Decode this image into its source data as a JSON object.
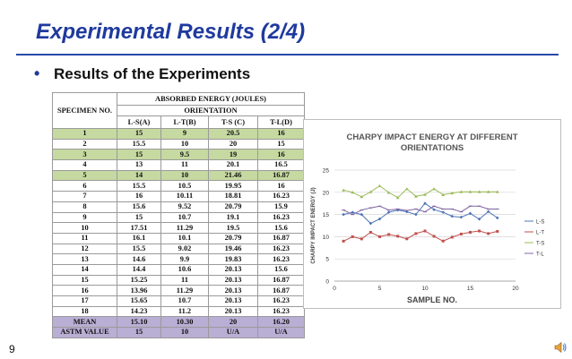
{
  "slide": {
    "title": "Experimental Results (2/4)",
    "bullet": "Results of the Experiments",
    "page_number": "9",
    "speaker_icon": "speaker-icon"
  },
  "table": {
    "specimen_header": "SPECIMEN NO.",
    "absorbed_header": "ABSORBED ENERGY (JOULES)",
    "orientation_header": "ORIENTATION",
    "columns": [
      "L-S(A)",
      "L-T(B)",
      "T-S (C)",
      "T-L(D)"
    ],
    "rows": [
      [
        "1",
        "15",
        "9",
        "20.5",
        "16"
      ],
      [
        "2",
        "15.5",
        "10",
        "20",
        "15"
      ],
      [
        "3",
        "15",
        "9.5",
        "19",
        "16"
      ],
      [
        "4",
        "13",
        "11",
        "20.1",
        "16.5"
      ],
      [
        "5",
        "14",
        "10",
        "21.46",
        "16.87"
      ],
      [
        "6",
        "15.5",
        "10.5",
        "19.95",
        "16"
      ],
      [
        "7",
        "16",
        "10.11",
        "18.81",
        "16.23"
      ],
      [
        "8",
        "15.6",
        "9.52",
        "20.79",
        "15.9"
      ],
      [
        "9",
        "15",
        "10.7",
        "19.1",
        "16.23"
      ],
      [
        "10",
        "17.51",
        "11.29",
        "19.5",
        "15.6"
      ],
      [
        "11",
        "16.1",
        "10.1",
        "20.79",
        "16.87"
      ],
      [
        "12",
        "15.5",
        "9.02",
        "19.46",
        "16.23"
      ],
      [
        "13",
        "14.6",
        "9.9",
        "19.83",
        "16.23"
      ],
      [
        "14",
        "14.4",
        "10.6",
        "20.13",
        "15.6"
      ],
      [
        "15",
        "15.25",
        "11",
        "20.13",
        "16.87"
      ],
      [
        "16",
        "13.96",
        "11.29",
        "20.13",
        "16.87"
      ],
      [
        "17",
        "15.65",
        "10.7",
        "20.13",
        "16.23"
      ],
      [
        "18",
        "14.23",
        "11.2",
        "20.13",
        "16.23"
      ]
    ],
    "mean_row": [
      "MEAN",
      "15.10",
      "10.30",
      "20",
      "16.20"
    ],
    "astm_row": [
      "ASTM VALUE",
      "15",
      "10",
      "U/A",
      "U/A"
    ],
    "colors": {
      "green_row": "#c6d9a1",
      "purple_row": "#b9aed4"
    }
  },
  "chart_data": {
    "type": "line",
    "title": "CHARPY IMPACT ENERGY AT DIFFERENT ORIENTATIONS",
    "xlabel": "SAMPLE NO.",
    "ylabel": "CHARPY IMPACT ENERGY (J)",
    "xlim": [
      0,
      20
    ],
    "ylim": [
      0,
      25
    ],
    "xticks": [
      0,
      5,
      10,
      15,
      20
    ],
    "yticks": [
      0,
      5,
      10,
      15,
      20,
      25
    ],
    "grid": true,
    "legend": "right",
    "x": [
      1,
      2,
      3,
      4,
      5,
      6,
      7,
      8,
      9,
      10,
      11,
      12,
      13,
      14,
      15,
      16,
      17,
      18
    ],
    "series": [
      {
        "name": "L-S",
        "color": "#4f74b8",
        "values": [
          15,
          15.5,
          15,
          13,
          14,
          15.5,
          16,
          15.6,
          15,
          17.51,
          16.1,
          15.5,
          14.6,
          14.4,
          15.25,
          13.96,
          15.65,
          14.23
        ]
      },
      {
        "name": "L-T",
        "color": "#c0504d",
        "values": [
          9,
          10,
          9.5,
          11,
          10,
          10.5,
          10.11,
          9.52,
          10.7,
          11.29,
          10.1,
          9.02,
          9.9,
          10.6,
          11,
          11.29,
          10.7,
          11.2
        ]
      },
      {
        "name": "T-S",
        "color": "#9bbb59",
        "values": [
          20.5,
          20,
          19,
          20.1,
          21.46,
          19.95,
          18.81,
          20.79,
          19.1,
          19.5,
          20.79,
          19.46,
          19.83,
          20.13,
          20.13,
          20.13,
          20.13,
          20.13
        ]
      },
      {
        "name": "T-L",
        "color": "#8064a2",
        "values": [
          16,
          15,
          16,
          16.5,
          16.87,
          16,
          16.23,
          15.9,
          16.23,
          15.6,
          16.87,
          16.23,
          16.23,
          15.6,
          16.87,
          16.87,
          16.23,
          16.23
        ]
      }
    ]
  }
}
